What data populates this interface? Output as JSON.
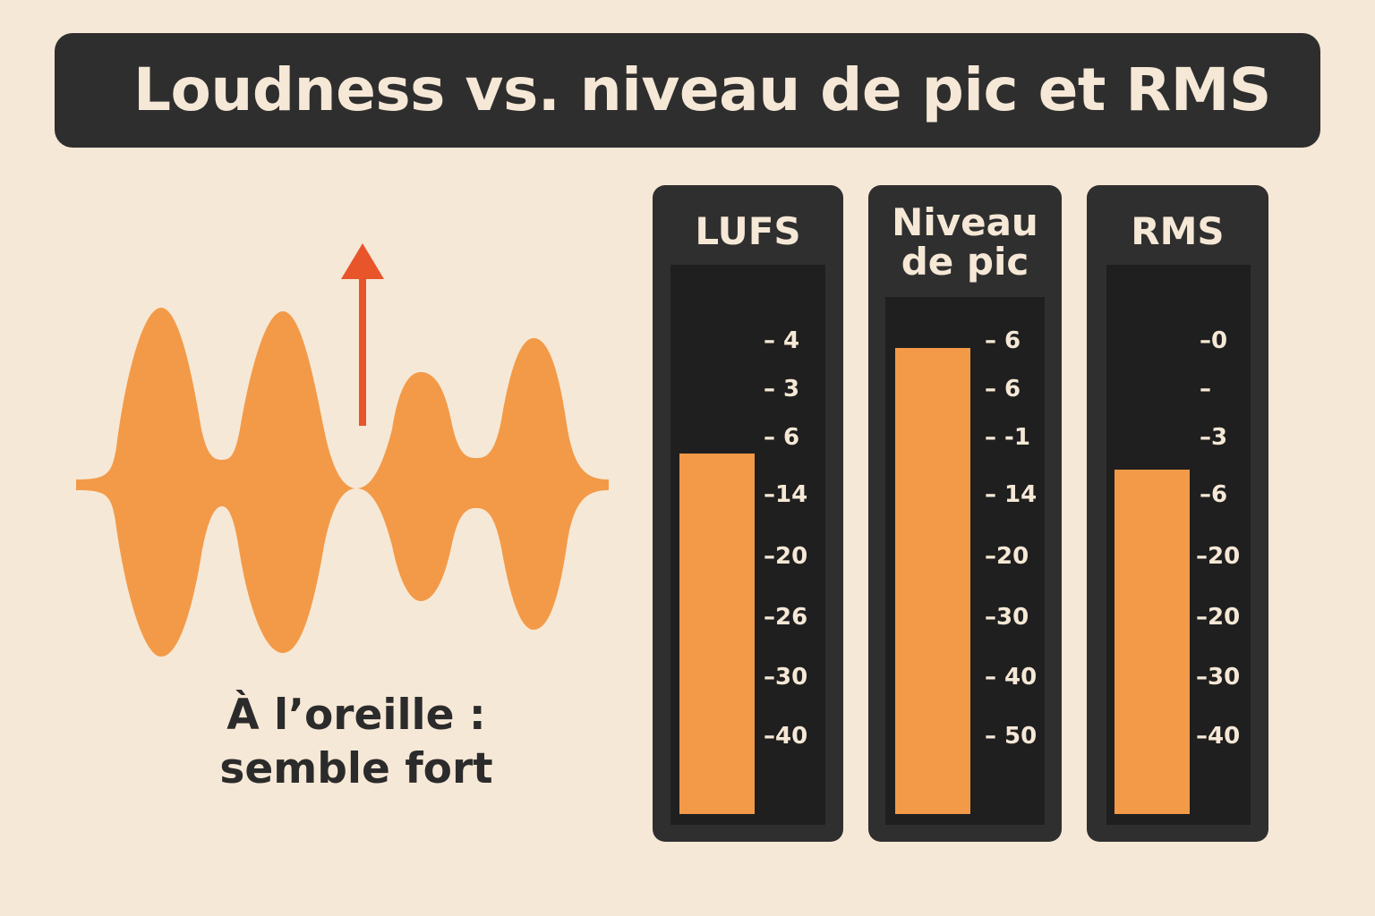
{
  "title": "Loudness vs. niveau de pic et RMS",
  "caption": {
    "line1": "À l’oreille :",
    "line2": "semble fort"
  },
  "colors": {
    "background": "#f6e8d6",
    "panel": "#2e2e2e",
    "meter_screen": "#1f1f1f",
    "waveform": "#f39a48",
    "arrow": "#e8552a",
    "text_light": "#f6e8d6",
    "text_dark": "#2b2b2b"
  },
  "icons": {
    "waveform": "waveform-icon",
    "arrow": "arrow-up-icon"
  },
  "meters": [
    {
      "id": "lufs",
      "title_lines": [
        "LUFS"
      ],
      "ticks": [
        "– 4",
        "– 3",
        "– 6",
        "–14",
        "–20",
        "–26",
        "–30",
        "–40"
      ],
      "fill_level": 0.67
    },
    {
      "id": "peak",
      "title_lines": [
        "Niveau",
        "de pic"
      ],
      "ticks": [
        "– 6",
        "– 6",
        "– -1",
        "– 14",
        "–20",
        "–30",
        "– 40",
        "– 50"
      ],
      "fill_level": 0.92
    },
    {
      "id": "rms",
      "title_lines": [
        "RMS"
      ],
      "ticks": [
        "–0",
        "–",
        "–3",
        "–6",
        "–20",
        "–20",
        "–30",
        "–40"
      ],
      "fill_level": 0.64
    }
  ]
}
